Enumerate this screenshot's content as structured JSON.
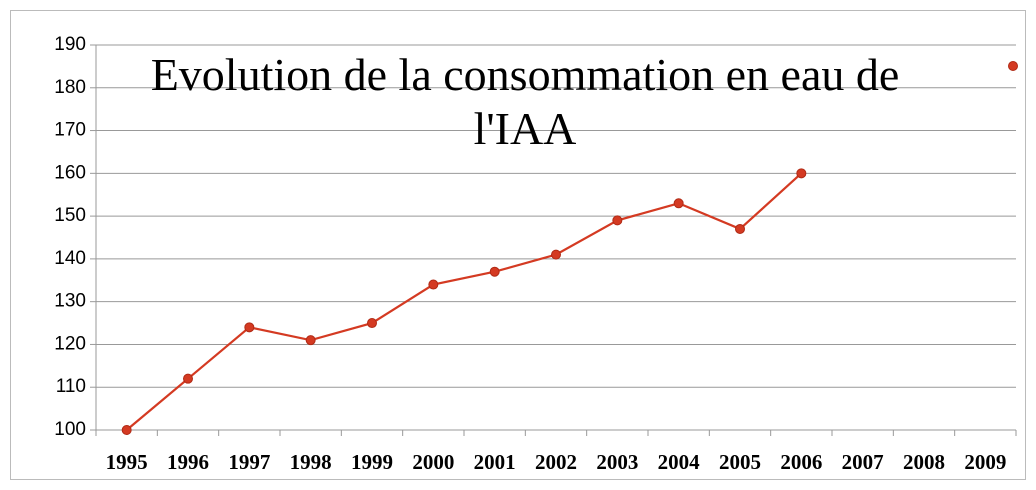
{
  "chart_data": {
    "type": "line",
    "title": "Evolution de la consommation en eau de l'IAA",
    "categories": [
      "1995",
      "1996",
      "1997",
      "1998",
      "1999",
      "2000",
      "2001",
      "2002",
      "2003",
      "2004",
      "2005",
      "2006",
      "2007",
      "2008",
      "2009"
    ],
    "series": [
      {
        "color": "#d43a22",
        "values": [
          100,
          112,
          124,
          121,
          125,
          134,
          137,
          141,
          149,
          153,
          147,
          160,
          null,
          null,
          null
        ]
      }
    ],
    "ylim": [
      100,
      190
    ],
    "yticks": [
      100,
      110,
      120,
      130,
      140,
      150,
      160,
      170,
      180,
      190
    ],
    "grid": true,
    "legend": "top-right"
  }
}
